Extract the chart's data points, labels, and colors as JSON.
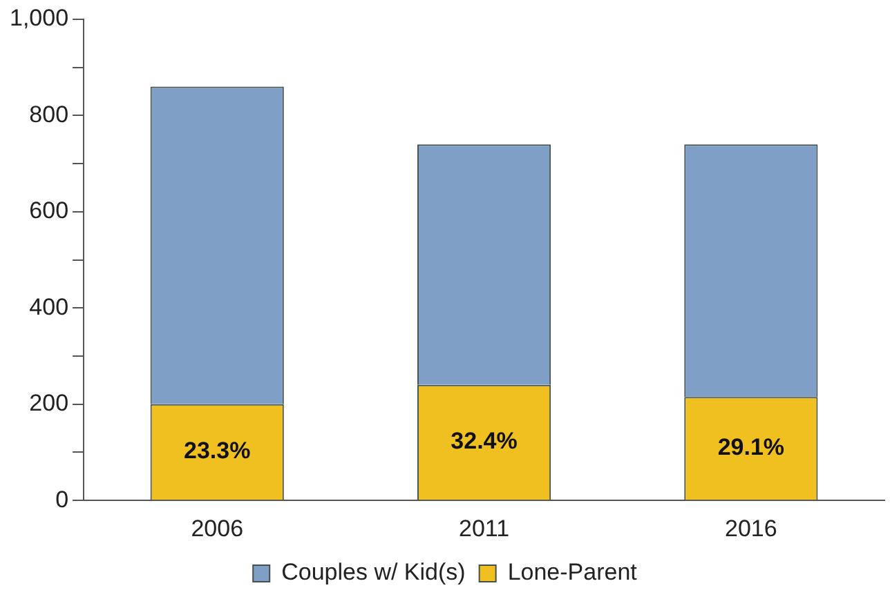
{
  "chart_data": {
    "type": "bar",
    "stacked": true,
    "categories": [
      "2006",
      "2011",
      "2016"
    ],
    "series": [
      {
        "name": "Lone-Parent",
        "color": "#f0c020",
        "values": [
          200,
          240,
          215
        ]
      },
      {
        "name": "Couples w/ Kid(s)",
        "color": "#7f9fc7",
        "values": [
          660,
          500,
          525
        ]
      }
    ],
    "ylim": [
      0,
      1000
    ],
    "yticks": [
      0,
      {
        "value": 100,
        "label": null
      },
      200,
      {
        "value": 300,
        "label": null
      },
      400,
      {
        "value": 500,
        "label": null
      },
      600,
      {
        "value": 700,
        "label": null
      },
      800,
      {
        "value": 900,
        "label": null
      },
      {
        "value": 1000,
        "label": "1,000"
      }
    ],
    "annotations": [
      "23.3%",
      "32.4%",
      "29.1%"
    ],
    "grid": false,
    "legend": "bottom"
  }
}
